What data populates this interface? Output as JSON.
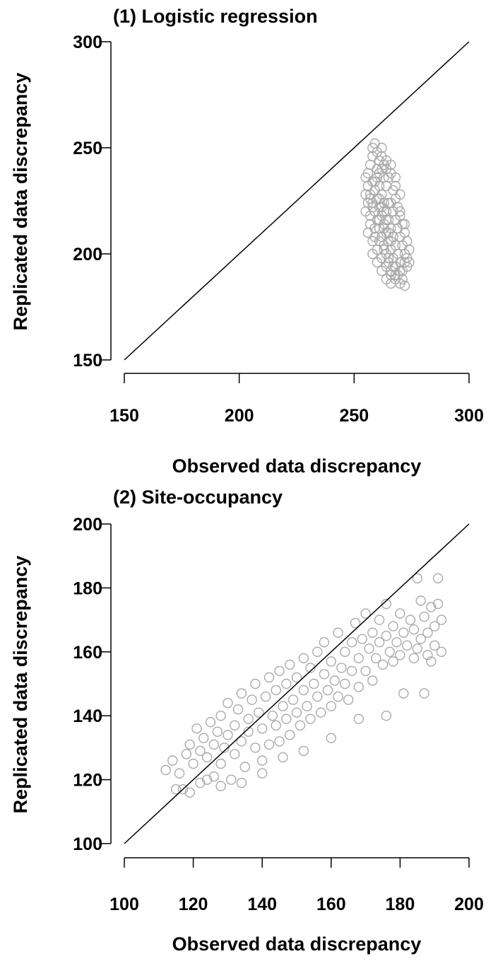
{
  "chart_data": [
    {
      "type": "scatter",
      "title": "(1) Logistic regression",
      "xlabel": "Observed data discrepancy",
      "ylabel": "Replicated data discrepancy",
      "xlim": [
        150,
        300
      ],
      "ylim": [
        150,
        300
      ],
      "xticks": [
        "150",
        "200",
        "250",
        "300"
      ],
      "yticks": [
        "150",
        "200",
        "250",
        "300"
      ],
      "reference_line": {
        "from": [
          150,
          150
        ],
        "to": [
          300,
          300
        ]
      },
      "point_color": "#aaaaaa",
      "points": [
        [
          256,
          238
        ],
        [
          257,
          242
        ],
        [
          258,
          246
        ],
        [
          258,
          250
        ],
        [
          259,
          252
        ],
        [
          260,
          248
        ],
        [
          261,
          244
        ],
        [
          262,
          240
        ],
        [
          263,
          236
        ],
        [
          264,
          232
        ],
        [
          259,
          230
        ],
        [
          260,
          226
        ],
        [
          261,
          222
        ],
        [
          262,
          218
        ],
        [
          263,
          214
        ],
        [
          264,
          210
        ],
        [
          265,
          206
        ],
        [
          266,
          202
        ],
        [
          267,
          198
        ],
        [
          268,
          194
        ],
        [
          257,
          228
        ],
        [
          258,
          224
        ],
        [
          259,
          220
        ],
        [
          260,
          216
        ],
        [
          261,
          212
        ],
        [
          262,
          208
        ],
        [
          263,
          204
        ],
        [
          264,
          200
        ],
        [
          265,
          196
        ],
        [
          266,
          192
        ],
        [
          255,
          236
        ],
        [
          256,
          232
        ],
        [
          257,
          226
        ],
        [
          258,
          222
        ],
        [
          260,
          236
        ],
        [
          261,
          232
        ],
        [
          262,
          228
        ],
        [
          263,
          224
        ],
        [
          264,
          220
        ],
        [
          265,
          216
        ],
        [
          266,
          212
        ],
        [
          267,
          208
        ],
        [
          268,
          204
        ],
        [
          269,
          200
        ],
        [
          270,
          196
        ],
        [
          271,
          192
        ],
        [
          266,
          224
        ],
        [
          267,
          220
        ],
        [
          268,
          216
        ],
        [
          269,
          212
        ],
        [
          270,
          208
        ],
        [
          271,
          204
        ],
        [
          272,
          200
        ],
        [
          273,
          198
        ],
        [
          270,
          186
        ],
        [
          272,
          185
        ],
        [
          268,
          188
        ],
        [
          266,
          190
        ],
        [
          264,
          194
        ],
        [
          262,
          198
        ],
        [
          260,
          202
        ],
        [
          258,
          206
        ],
        [
          256,
          210
        ],
        [
          257,
          214
        ],
        [
          255,
          220
        ],
        [
          256,
          224
        ],
        [
          259,
          234
        ],
        [
          261,
          238
        ],
        [
          263,
          242
        ],
        [
          265,
          236
        ],
        [
          267,
          230
        ],
        [
          268,
          226
        ],
        [
          269,
          222
        ],
        [
          270,
          218
        ],
        [
          271,
          214
        ],
        [
          272,
          210
        ],
        [
          273,
          206
        ],
        [
          274,
          202
        ],
        [
          272,
          196
        ],
        [
          270,
          192
        ],
        [
          268,
          190
        ],
        [
          266,
          186
        ],
        [
          264,
          188
        ],
        [
          262,
          192
        ],
        [
          260,
          196
        ],
        [
          258,
          200
        ],
        [
          259,
          208
        ],
        [
          261,
          216
        ],
        [
          263,
          220
        ],
        [
          265,
          224
        ],
        [
          262,
          246
        ],
        [
          264,
          240
        ],
        [
          266,
          238
        ],
        [
          268,
          232
        ],
        [
          270,
          228
        ],
        [
          262,
          250
        ],
        [
          260,
          240
        ],
        [
          258,
          234
        ],
        [
          255,
          228
        ],
        [
          257,
          218
        ],
        [
          259,
          212
        ],
        [
          261,
          206
        ],
        [
          263,
          202
        ],
        [
          265,
          198
        ],
        [
          267,
          194
        ],
        [
          269,
          190
        ],
        [
          271,
          188
        ],
        [
          273,
          194
        ],
        [
          274,
          196
        ],
        [
          272,
          214
        ],
        [
          270,
          220
        ],
        [
          268,
          236
        ],
        [
          266,
          242
        ],
        [
          264,
          244
        ],
        [
          261,
          226
        ],
        [
          262,
          222
        ],
        [
          263,
          212
        ],
        [
          264,
          216
        ],
        [
          265,
          210
        ],
        [
          266,
          206
        ]
      ]
    },
    {
      "type": "scatter",
      "title": "(2) Site-occupancy",
      "xlabel": "Observed data discrepancy",
      "ylabel": "Replicated data discrepancy",
      "xlim": [
        100,
        200
      ],
      "ylim": [
        100,
        200
      ],
      "xticks": [
        "100",
        "120",
        "140",
        "160",
        "180",
        "200"
      ],
      "yticks": [
        "100",
        "120",
        "140",
        "160",
        "180",
        "200"
      ],
      "reference_line": {
        "from": [
          100,
          100
        ],
        "to": [
          200,
          200
        ]
      },
      "point_color": "#aaaaaa",
      "points": [
        [
          112,
          123
        ],
        [
          114,
          126
        ],
        [
          115,
          117
        ],
        [
          116,
          122
        ],
        [
          117,
          117
        ],
        [
          118,
          128
        ],
        [
          119,
          131
        ],
        [
          120,
          125
        ],
        [
          121,
          136
        ],
        [
          122,
          119
        ],
        [
          122,
          129
        ],
        [
          123,
          133
        ],
        [
          124,
          127
        ],
        [
          125,
          138
        ],
        [
          126,
          121
        ],
        [
          126,
          131
        ],
        [
          127,
          135
        ],
        [
          128,
          140
        ],
        [
          128,
          125
        ],
        [
          129,
          130
        ],
        [
          130,
          144
        ],
        [
          130,
          134
        ],
        [
          131,
          120
        ],
        [
          132,
          137
        ],
        [
          132,
          128
        ],
        [
          133,
          142
        ],
        [
          134,
          132
        ],
        [
          134,
          147
        ],
        [
          135,
          124
        ],
        [
          136,
          139
        ],
        [
          136,
          135
        ],
        [
          137,
          145
        ],
        [
          138,
          130
        ],
        [
          138,
          150
        ],
        [
          139,
          141
        ],
        [
          140,
          136
        ],
        [
          140,
          126
        ],
        [
          141,
          146
        ],
        [
          142,
          152
        ],
        [
          142,
          131
        ],
        [
          143,
          140
        ],
        [
          144,
          137
        ],
        [
          144,
          148
        ],
        [
          145,
          154
        ],
        [
          145,
          132
        ],
        [
          146,
          143
        ],
        [
          147,
          139
        ],
        [
          147,
          150
        ],
        [
          148,
          156
        ],
        [
          148,
          134
        ],
        [
          149,
          145
        ],
        [
          150,
          141
        ],
        [
          150,
          152
        ],
        [
          151,
          137
        ],
        [
          152,
          158
        ],
        [
          152,
          148
        ],
        [
          153,
          143
        ],
        [
          154,
          155
        ],
        [
          154,
          139
        ],
        [
          155,
          150
        ],
        [
          156,
          160
        ],
        [
          156,
          146
        ],
        [
          157,
          141
        ],
        [
          158,
          153
        ],
        [
          158,
          163
        ],
        [
          159,
          148
        ],
        [
          160,
          157
        ],
        [
          160,
          143
        ],
        [
          161,
          151
        ],
        [
          162,
          166
        ],
        [
          162,
          146
        ],
        [
          163,
          155
        ],
        [
          164,
          160
        ],
        [
          164,
          150
        ],
        [
          165,
          145
        ],
        [
          166,
          163
        ],
        [
          166,
          154
        ],
        [
          167,
          169
        ],
        [
          168,
          149
        ],
        [
          168,
          158
        ],
        [
          169,
          164
        ],
        [
          170,
          154
        ],
        [
          170,
          172
        ],
        [
          171,
          161
        ],
        [
          172,
          166
        ],
        [
          172,
          151
        ],
        [
          173,
          158
        ],
        [
          174,
          170
        ],
        [
          174,
          163
        ],
        [
          175,
          156
        ],
        [
          176,
          175
        ],
        [
          176,
          165
        ],
        [
          177,
          160
        ],
        [
          178,
          168
        ],
        [
          178,
          157
        ],
        [
          179,
          163
        ],
        [
          180,
          172
        ],
        [
          180,
          159
        ],
        [
          181,
          166
        ],
        [
          182,
          162
        ],
        [
          183,
          170
        ],
        [
          184,
          158
        ],
        [
          184,
          167
        ],
        [
          185,
          183
        ],
        [
          185,
          161
        ],
        [
          186,
          176
        ],
        [
          186,
          164
        ],
        [
          187,
          171
        ],
        [
          187,
          147
        ],
        [
          188,
          159
        ],
        [
          188,
          166
        ],
        [
          189,
          174
        ],
        [
          189,
          157
        ],
        [
          190,
          168
        ],
        [
          190,
          162
        ],
        [
          191,
          183
        ],
        [
          191,
          175
        ],
        [
          192,
          160
        ],
        [
          192,
          170
        ],
        [
          181,
          147
        ],
        [
          176,
          140
        ],
        [
          168,
          139
        ],
        [
          160,
          133
        ],
        [
          152,
          129
        ],
        [
          146,
          127
        ],
        [
          140,
          122
        ],
        [
          134,
          119
        ],
        [
          128,
          118
        ],
        [
          124,
          120
        ],
        [
          119,
          116
        ]
      ]
    }
  ]
}
